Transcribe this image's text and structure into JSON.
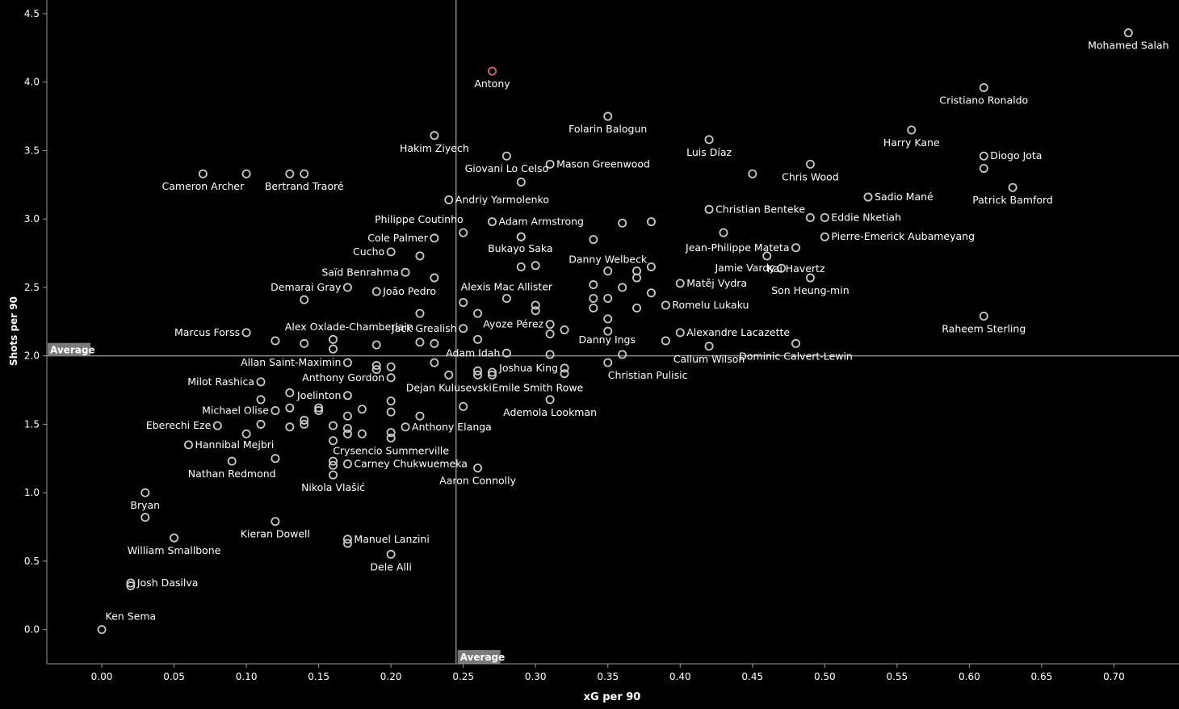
{
  "chart_data": {
    "type": "scatter",
    "title": "",
    "xlabel": "xG per 90",
    "ylabel": "Shots per 90",
    "xlim": [
      -0.038,
      0.745
    ],
    "ylim": [
      -0.25,
      4.6
    ],
    "xticks": [
      "0.00",
      "0.05",
      "0.10",
      "0.15",
      "0.20",
      "0.25",
      "0.30",
      "0.35",
      "0.40",
      "0.45",
      "0.50",
      "0.55",
      "0.60",
      "0.65",
      "0.70"
    ],
    "yticks": [
      "0.0",
      "0.5",
      "1.0",
      "1.5",
      "2.0",
      "2.5",
      "3.0",
      "3.5",
      "4.0",
      "4.5"
    ],
    "reference_lines": {
      "x": {
        "value": 0.245,
        "label": "Average"
      },
      "y": {
        "value": 2.0,
        "label": "Average"
      }
    },
    "colors": {
      "background": "#000000",
      "point": "#c8c8c8",
      "highlight": "#e06666",
      "text": "#ffffff",
      "axis": "#9a9a9a",
      "avg_line": "#8a8a8a",
      "avg_label_bg": "#7a7a7a"
    },
    "points": [
      {
        "name": "Mohamed Salah",
        "x": 0.71,
        "y": 4.36,
        "label_pos": "below"
      },
      {
        "name": "Antony",
        "x": 0.27,
        "y": 4.08,
        "label_pos": "below",
        "highlight": true
      },
      {
        "name": "Cristiano Ronaldo",
        "x": 0.61,
        "y": 3.96,
        "label_pos": "below"
      },
      {
        "name": "Folarin Balogun",
        "x": 0.35,
        "y": 3.75,
        "label_pos": "below"
      },
      {
        "name": "Harry Kane",
        "x": 0.56,
        "y": 3.65,
        "label_pos": "below"
      },
      {
        "name": "Hakim Ziyech",
        "x": 0.23,
        "y": 3.61,
        "label_pos": "below"
      },
      {
        "name": "Luis Díaz",
        "x": 0.42,
        "y": 3.58,
        "label_pos": "below"
      },
      {
        "name": "Giovani Lo Celso",
        "x": 0.28,
        "y": 3.46,
        "label_pos": "below"
      },
      {
        "name": "Mason Greenwood",
        "x": 0.31,
        "y": 3.4,
        "label_pos": "right"
      },
      {
        "name": "Diogo Jota",
        "x": 0.61,
        "y": 3.46,
        "label_pos": "right"
      },
      {
        "name": "",
        "x": 0.61,
        "y": 3.37
      },
      {
        "name": "Chris Wood",
        "x": 0.49,
        "y": 3.4,
        "label_pos": "below"
      },
      {
        "name": "",
        "x": 0.45,
        "y": 3.33
      },
      {
        "name": "Cameron Archer",
        "x": 0.07,
        "y": 3.33,
        "label_pos": "below"
      },
      {
        "name": "",
        "x": 0.1,
        "y": 3.33
      },
      {
        "name": "",
        "x": 0.13,
        "y": 3.33
      },
      {
        "name": "Bertrand Traoré",
        "x": 0.14,
        "y": 3.33,
        "label_pos": "below"
      },
      {
        "name": "",
        "x": 0.29,
        "y": 3.27
      },
      {
        "name": "Patrick Bamford",
        "x": 0.63,
        "y": 3.23,
        "label_pos": "below"
      },
      {
        "name": "Andriy Yarmolenko",
        "x": 0.24,
        "y": 3.14,
        "label_pos": "right"
      },
      {
        "name": "Sadio Mané",
        "x": 0.53,
        "y": 3.16,
        "label_pos": "right"
      },
      {
        "name": "Christian Benteke",
        "x": 0.42,
        "y": 3.07,
        "label_pos": "right"
      },
      {
        "name": "Eddie Nketiah",
        "x": 0.5,
        "y": 3.01,
        "label_pos": "right"
      },
      {
        "name": "",
        "x": 0.49,
        "y": 3.01
      },
      {
        "name": "Adam Armstrong",
        "x": 0.27,
        "y": 2.98,
        "label_pos": "right"
      },
      {
        "name": "",
        "x": 0.36,
        "y": 2.97
      },
      {
        "name": "",
        "x": 0.38,
        "y": 2.98
      },
      {
        "name": "Philippe Coutinho",
        "x": 0.25,
        "y": 2.9,
        "label_pos": "above-left"
      },
      {
        "name": "",
        "x": 0.43,
        "y": 2.9
      },
      {
        "name": "Pierre-Emerick Aubameyang",
        "x": 0.5,
        "y": 2.87,
        "label_pos": "right"
      },
      {
        "name": "Cole Palmer",
        "x": 0.23,
        "y": 2.86,
        "label_pos": "left"
      },
      {
        "name": "",
        "x": 0.29,
        "y": 2.87
      },
      {
        "name": "",
        "x": 0.34,
        "y": 2.85
      },
      {
        "name": "Bukayo Saka",
        "x": 0.29,
        "y": 2.87,
        "label_pos": "below-none"
      },
      {
        "name": "Jean-Philippe Mateta",
        "x": 0.48,
        "y": 2.79,
        "label_pos": "left"
      },
      {
        "name": "Cucho",
        "x": 0.2,
        "y": 2.76,
        "label_pos": "left"
      },
      {
        "name": "",
        "x": 0.22,
        "y": 2.73
      },
      {
        "name": "Kai Havertz",
        "x": 0.46,
        "y": 2.73,
        "label_pos": "below-right"
      },
      {
        "name": "",
        "x": 0.29,
        "y": 2.65
      },
      {
        "name": "",
        "x": 0.3,
        "y": 2.66
      },
      {
        "name": "Danny Welbeck",
        "x": 0.35,
        "y": 2.62,
        "label_pos": "above"
      },
      {
        "name": "",
        "x": 0.37,
        "y": 2.62
      },
      {
        "name": "",
        "x": 0.38,
        "y": 2.65
      },
      {
        "name": "Jamie Vardy",
        "x": 0.47,
        "y": 2.64,
        "label_pos": "left"
      },
      {
        "name": "Saïd Benrahma",
        "x": 0.21,
        "y": 2.61,
        "label_pos": "left"
      },
      {
        "name": "",
        "x": 0.23,
        "y": 2.57
      },
      {
        "name": "",
        "x": 0.37,
        "y": 2.57
      },
      {
        "name": "Son Heung-min",
        "x": 0.49,
        "y": 2.57,
        "label_pos": "below"
      },
      {
        "name": "Matěj Vydra",
        "x": 0.4,
        "y": 2.53,
        "label_pos": "right"
      },
      {
        "name": "",
        "x": 0.34,
        "y": 2.52
      },
      {
        "name": "",
        "x": 0.36,
        "y": 2.5
      },
      {
        "name": "Demarai Gray",
        "x": 0.17,
        "y": 2.5,
        "label_pos": "left"
      },
      {
        "name": "João Pedro",
        "x": 0.19,
        "y": 2.47,
        "label_pos": "right-far"
      },
      {
        "name": "Alexis Mac Allister",
        "x": 0.28,
        "y": 2.42,
        "label_pos": "above"
      },
      {
        "name": "",
        "x": 0.34,
        "y": 2.42
      },
      {
        "name": "",
        "x": 0.35,
        "y": 2.42
      },
      {
        "name": "",
        "x": 0.38,
        "y": 2.46
      },
      {
        "name": "",
        "x": 0.14,
        "y": 2.41
      },
      {
        "name": "",
        "x": 0.25,
        "y": 2.39
      },
      {
        "name": "",
        "x": 0.3,
        "y": 2.37
      },
      {
        "name": "Romelu Lukaku",
        "x": 0.39,
        "y": 2.37,
        "label_pos": "right"
      },
      {
        "name": "",
        "x": 0.34,
        "y": 2.35
      },
      {
        "name": "",
        "x": 0.37,
        "y": 2.35
      },
      {
        "name": "Alex Oxlade-Chamberlain",
        "x": 0.22,
        "y": 2.31,
        "label_pos": "left-below"
      },
      {
        "name": "",
        "x": 0.26,
        "y": 2.31
      },
      {
        "name": "",
        "x": 0.3,
        "y": 2.33
      },
      {
        "name": "Raheem Sterling",
        "x": 0.61,
        "y": 2.29,
        "label_pos": "below"
      },
      {
        "name": "Ayoze Pérez",
        "x": 0.31,
        "y": 2.23,
        "label_pos": "left"
      },
      {
        "name": "",
        "x": 0.35,
        "y": 2.27
      },
      {
        "name": "",
        "x": 0.32,
        "y": 2.19
      },
      {
        "name": "Jack Grealish",
        "x": 0.25,
        "y": 2.2,
        "label_pos": "left-far"
      },
      {
        "name": "Marcus Forss",
        "x": 0.1,
        "y": 2.17,
        "label_pos": "left"
      },
      {
        "name": "",
        "x": 0.31,
        "y": 2.16
      },
      {
        "name": "Danny Ings",
        "x": 0.35,
        "y": 2.18,
        "label_pos": "none"
      },
      {
        "name": "Alexandre Lacazette",
        "x": 0.4,
        "y": 2.17,
        "label_pos": "right"
      },
      {
        "name": "",
        "x": 0.12,
        "y": 2.11
      },
      {
        "name": "",
        "x": 0.16,
        "y": 2.12
      },
      {
        "name": "",
        "x": 0.26,
        "y": 2.12
      },
      {
        "name": "",
        "x": 0.39,
        "y": 2.11
      },
      {
        "name": "",
        "x": 0.14,
        "y": 2.09
      },
      {
        "name": "",
        "x": 0.19,
        "y": 2.08
      },
      {
        "name": "",
        "x": 0.22,
        "y": 2.1
      },
      {
        "name": "",
        "x": 0.23,
        "y": 2.09
      },
      {
        "name": "Dominic Calvert-Lewin",
        "x": 0.48,
        "y": 2.09,
        "label_pos": "below"
      },
      {
        "name": "Callum Wilson",
        "x": 0.42,
        "y": 2.07,
        "label_pos": "below"
      },
      {
        "name": "",
        "x": 0.16,
        "y": 2.05
      },
      {
        "name": "Adam Idah",
        "x": 0.28,
        "y": 2.02,
        "label_pos": "left"
      },
      {
        "name": "",
        "x": 0.31,
        "y": 2.01
      },
      {
        "name": "",
        "x": 0.36,
        "y": 2.01
      },
      {
        "name": "Allan Saint-Maximin",
        "x": 0.17,
        "y": 1.95,
        "label_pos": "left"
      },
      {
        "name": "",
        "x": 0.23,
        "y": 1.95
      },
      {
        "name": "Christian Pulisic",
        "x": 0.35,
        "y": 1.95,
        "label_pos": "below-right"
      },
      {
        "name": "",
        "x": 0.19,
        "y": 1.93
      },
      {
        "name": "",
        "x": 0.19,
        "y": 1.9
      },
      {
        "name": "",
        "x": 0.2,
        "y": 1.92
      },
      {
        "name": "Joshua King",
        "x": 0.32,
        "y": 1.91,
        "label_pos": "left"
      },
      {
        "name": "",
        "x": 0.32,
        "y": 1.87
      },
      {
        "name": "",
        "x": 0.26,
        "y": 1.89
      },
      {
        "name": "",
        "x": 0.26,
        "y": 1.86
      },
      {
        "name": "",
        "x": 0.27,
        "y": 1.88
      },
      {
        "name": "Dejan Kulusevski",
        "x": 0.24,
        "y": 1.86,
        "label_pos": "below"
      },
      {
        "name": "Emile Smith Rowe",
        "x": 0.27,
        "y": 1.86,
        "label_pos": "below-right"
      },
      {
        "name": "Anthony Gordon",
        "x": 0.2,
        "y": 1.84,
        "label_pos": "left"
      },
      {
        "name": "Milot Rashica",
        "x": 0.11,
        "y": 1.81,
        "label_pos": "left"
      },
      {
        "name": "",
        "x": 0.13,
        "y": 1.73
      },
      {
        "name": "Joelinton",
        "x": 0.17,
        "y": 1.71,
        "label_pos": "left"
      },
      {
        "name": "",
        "x": 0.11,
        "y": 1.68
      },
      {
        "name": "",
        "x": 0.2,
        "y": 1.67
      },
      {
        "name": "Ademola Lookman",
        "x": 0.31,
        "y": 1.68,
        "label_pos": "below"
      },
      {
        "name": "",
        "x": 0.13,
        "y": 1.62
      },
      {
        "name": "",
        "x": 0.15,
        "y": 1.62
      },
      {
        "name": "",
        "x": 0.15,
        "y": 1.6
      },
      {
        "name": "",
        "x": 0.18,
        "y": 1.61
      },
      {
        "name": "",
        "x": 0.25,
        "y": 1.63
      },
      {
        "name": "Michael Olise",
        "x": 0.12,
        "y": 1.6,
        "label_pos": "left"
      },
      {
        "name": "",
        "x": 0.2,
        "y": 1.59
      },
      {
        "name": "",
        "x": 0.22,
        "y": 1.56
      },
      {
        "name": "",
        "x": 0.14,
        "y": 1.53
      },
      {
        "name": "",
        "x": 0.17,
        "y": 1.56
      },
      {
        "name": "",
        "x": 0.11,
        "y": 1.5
      },
      {
        "name": "",
        "x": 0.14,
        "y": 1.5
      },
      {
        "name": "Eberechi Eze",
        "x": 0.08,
        "y": 1.49,
        "label_pos": "left"
      },
      {
        "name": "",
        "x": 0.13,
        "y": 1.48
      },
      {
        "name": "",
        "x": 0.16,
        "y": 1.49
      },
      {
        "name": "",
        "x": 0.17,
        "y": 1.47
      },
      {
        "name": "Anthony Elanga",
        "x": 0.21,
        "y": 1.48,
        "label_pos": "right"
      },
      {
        "name": "",
        "x": 0.1,
        "y": 1.43
      },
      {
        "name": "",
        "x": 0.17,
        "y": 1.43
      },
      {
        "name": "",
        "x": 0.18,
        "y": 1.43
      },
      {
        "name": "",
        "x": 0.2,
        "y": 1.44
      },
      {
        "name": "",
        "x": 0.16,
        "y": 1.38
      },
      {
        "name": "Hannibal Mejbri",
        "x": 0.06,
        "y": 1.35,
        "label_pos": "right"
      },
      {
        "name": "Crysencio Summerville",
        "x": 0.2,
        "y": 1.4,
        "label_pos": "below"
      },
      {
        "name": "",
        "x": 0.12,
        "y": 1.25
      },
      {
        "name": "Nathan Redmond",
        "x": 0.09,
        "y": 1.23,
        "label_pos": "below"
      },
      {
        "name": "",
        "x": 0.16,
        "y": 1.23
      },
      {
        "name": "",
        "x": 0.16,
        "y": 1.2
      },
      {
        "name": "Carney Chukwuemeka",
        "x": 0.17,
        "y": 1.21,
        "label_pos": "right"
      },
      {
        "name": "Aaron Connolly",
        "x": 0.26,
        "y": 1.18,
        "label_pos": "below"
      },
      {
        "name": "Nikola Vlašić",
        "x": 0.16,
        "y": 1.13,
        "label_pos": "below"
      },
      {
        "name": "Bryan",
        "x": 0.03,
        "y": 1.0,
        "label_pos": "below"
      },
      {
        "name": "",
        "x": 0.03,
        "y": 0.82
      },
      {
        "name": "Kieran Dowell",
        "x": 0.12,
        "y": 0.79,
        "label_pos": "below"
      },
      {
        "name": "William Smallbone",
        "x": 0.05,
        "y": 0.67,
        "label_pos": "below"
      },
      {
        "name": "Manuel Lanzini",
        "x": 0.17,
        "y": 0.66,
        "label_pos": "right"
      },
      {
        "name": "",
        "x": 0.17,
        "y": 0.63
      },
      {
        "name": "Dele Alli",
        "x": 0.2,
        "y": 0.55,
        "label_pos": "below"
      },
      {
        "name": "Josh Dasilva",
        "x": 0.02,
        "y": 0.34,
        "label_pos": "right"
      },
      {
        "name": "Ken Sema",
        "x": 0.02,
        "y": 0.32,
        "label_pos": "below-far"
      },
      {
        "name": "",
        "x": 0.0,
        "y": 0.0
      }
    ]
  }
}
